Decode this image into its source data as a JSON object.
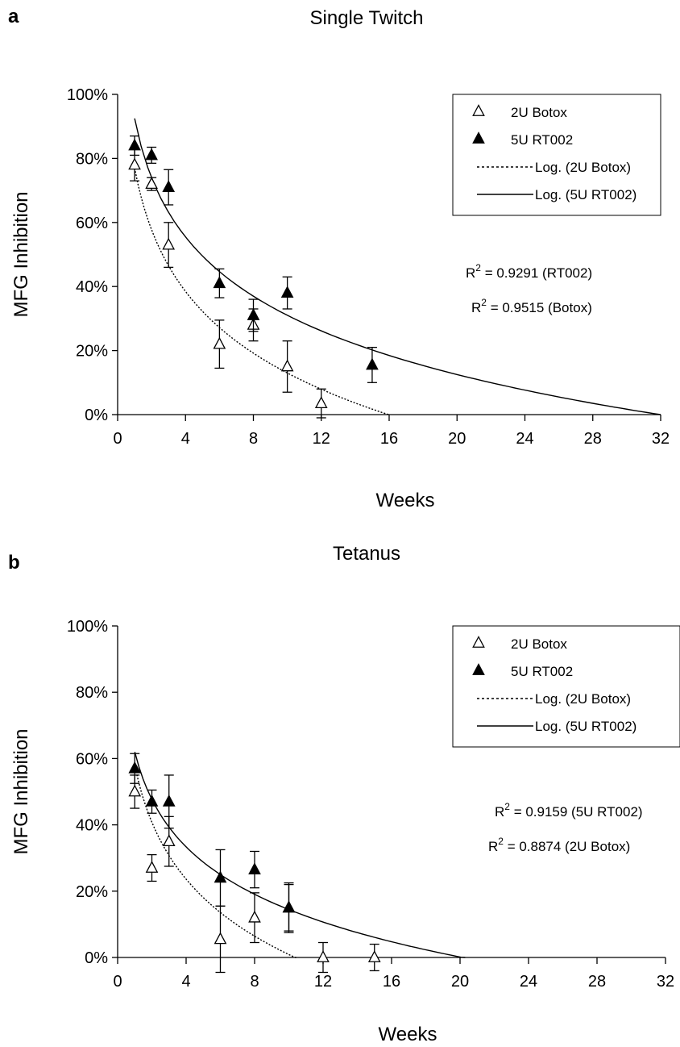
{
  "chart_data": [
    {
      "type": "scatter",
      "panel_label": "a",
      "title": "Single Twitch",
      "xlabel": "Weeks",
      "ylabel": "MFG Inhibition",
      "xlim": [
        0,
        32
      ],
      "ylim": [
        0,
        100
      ],
      "x_ticks": [
        "0",
        "4",
        "8",
        "12",
        "16",
        "20",
        "24",
        "28",
        "32"
      ],
      "y_ticks": [
        "0%",
        "20%",
        "40%",
        "60%",
        "80%",
        "100%"
      ],
      "legend_position": "top-right",
      "legend": [
        "2U Botox",
        "5U RT002",
        "Log. (2U Botox)",
        "Log. (5U RT002)"
      ],
      "series": [
        {
          "name": "2U Botox",
          "marker": "open-triangle",
          "points": [
            {
              "x": 1,
              "y": 78,
              "err": 5
            },
            {
              "x": 2,
              "y": 72,
              "err": 2
            },
            {
              "x": 3,
              "y": 53,
              "err": 7
            },
            {
              "x": 6,
              "y": 22,
              "err": 7.5
            },
            {
              "x": 8,
              "y": 28,
              "err": 5
            },
            {
              "x": 10,
              "y": 15,
              "err": 8
            },
            {
              "x": 12,
              "y": 3.5,
              "err": 4.5
            }
          ]
        },
        {
          "name": "5U RT002",
          "marker": "filled-triangle",
          "points": [
            {
              "x": 1,
              "y": 84,
              "err": 3
            },
            {
              "x": 2,
              "y": 81,
              "err": 2.5
            },
            {
              "x": 3,
              "y": 71,
              "err": 5.5
            },
            {
              "x": 6,
              "y": 41,
              "err": 4.5
            },
            {
              "x": 8,
              "y": 31,
              "err": 5
            },
            {
              "x": 10,
              "y": 38,
              "err": 5
            },
            {
              "x": 15,
              "y": 15.5,
              "err": 5.5
            }
          ]
        }
      ],
      "trendlines": [
        {
          "name": "Log. (2U Botox)",
          "style": "dotted",
          "x_range": [
            1,
            16
          ],
          "a": 77,
          "b": -27.8
        },
        {
          "name": "Log. (5U RT002)",
          "style": "solid",
          "x_range": [
            1,
            32
          ],
          "a": 92.5,
          "b": -26.7
        }
      ],
      "annotations": [
        {
          "text": "R² = 0.9291 (RT002)"
        },
        {
          "text": "R² = 0.9515 (Botox)"
        }
      ]
    },
    {
      "type": "scatter",
      "panel_label": "b",
      "title": "Tetanus",
      "xlabel": "Weeks",
      "ylabel": "MFG Inhibition",
      "xlim": [
        0,
        32
      ],
      "ylim": [
        0,
        100
      ],
      "x_ticks": [
        "0",
        "4",
        "8",
        "12",
        "16",
        "20",
        "24",
        "28",
        "32"
      ],
      "y_ticks": [
        "0%",
        "20%",
        "40%",
        "60%",
        "80%",
        "100%"
      ],
      "legend_position": "top-right",
      "legend": [
        "2U Botox",
        "5U RT002",
        "Log. (2U Botox)",
        "Log. (5U RT002)"
      ],
      "series": [
        {
          "name": "2U Botox",
          "marker": "open-triangle",
          "points": [
            {
              "x": 1,
              "y": 50,
              "err": 5
            },
            {
              "x": 2,
              "y": 27,
              "err": 4
            },
            {
              "x": 3,
              "y": 35,
              "err": 7.5
            },
            {
              "x": 6,
              "y": 5.5,
              "err": 10
            },
            {
              "x": 8,
              "y": 12,
              "err": 7.5
            },
            {
              "x": 10,
              "y": 15,
              "err": 7
            },
            {
              "x": 12,
              "y": 0,
              "err": 4.5
            },
            {
              "x": 15,
              "y": 0,
              "err": 4
            }
          ]
        },
        {
          "name": "5U RT002",
          "marker": "filled-triangle",
          "points": [
            {
              "x": 1,
              "y": 57,
              "err": 4.5
            },
            {
              "x": 2,
              "y": 47,
              "err": 3.5
            },
            {
              "x": 3,
              "y": 47,
              "err": 8
            },
            {
              "x": 6,
              "y": 24,
              "err": 8.5
            },
            {
              "x": 8,
              "y": 26.5,
              "err": 5.5
            },
            {
              "x": 10,
              "y": 15,
              "err": 7.5
            }
          ]
        }
      ],
      "trendlines": [
        {
          "name": "Log. (2U Botox)",
          "style": "dotted",
          "x_range": [
            1,
            10.5
          ],
          "a": 58,
          "b": -24.8
        },
        {
          "name": "Log. (5U RT002)",
          "style": "solid",
          "x_range": [
            1,
            20.3
          ],
          "a": 62,
          "b": -20.65
        }
      ],
      "annotations": [
        {
          "text": "R² = 0.9159 (5U RT002)"
        },
        {
          "text": "R² = 0.8874 (2U Botox)"
        }
      ]
    }
  ]
}
